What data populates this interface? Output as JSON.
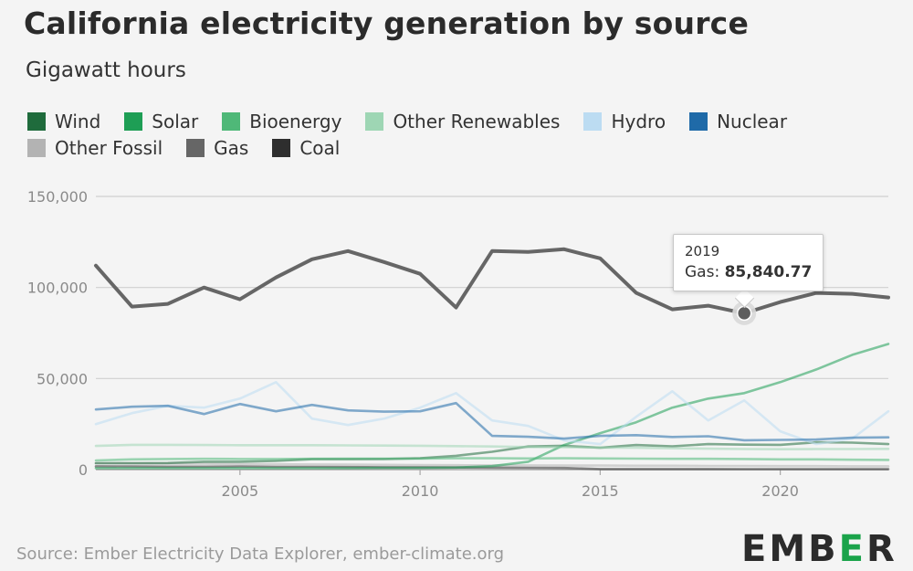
{
  "title": "California electricity generation by source",
  "subtitle": "Gigawatt hours",
  "legend": [
    {
      "name": "Wind",
      "color": "#1f6b3c"
    },
    {
      "name": "Solar",
      "color": "#1e9e55"
    },
    {
      "name": "Bioenergy",
      "color": "#4fb878"
    },
    {
      "name": "Other Renewables",
      "color": "#9ed6b4"
    },
    {
      "name": "Hydro",
      "color": "#bcdcf2"
    },
    {
      "name": "Nuclear",
      "color": "#1f6aa8"
    },
    {
      "name": "Other Fossil",
      "color": "#b3b3b3"
    },
    {
      "name": "Gas",
      "color": "#666666"
    },
    {
      "name": "Coal",
      "color": "#2e2e2e"
    }
  ],
  "tooltip": {
    "year": "2019",
    "series_label": "Gas: ",
    "value": "85,840.77"
  },
  "source": "Source: Ember Electricity Data Explorer, ember-climate.org",
  "logo": {
    "part1": "EMB",
    "part2": "E",
    "part3": "R"
  },
  "chart_data": {
    "type": "line",
    "title": "California electricity generation by source",
    "ylabel": "Gigawatt hours",
    "xlabel": "",
    "xlim": [
      2001,
      2023
    ],
    "ylim": [
      0,
      150000
    ],
    "x_ticks": [
      2005,
      2010,
      2015,
      2020
    ],
    "y_ticks": [
      0,
      50000,
      100000,
      150000
    ],
    "y_tick_labels": [
      "0",
      "50,000",
      "100,000",
      "150,000"
    ],
    "x": [
      2001,
      2002,
      2003,
      2004,
      2005,
      2006,
      2007,
      2008,
      2009,
      2010,
      2011,
      2012,
      2013,
      2014,
      2015,
      2016,
      2017,
      2018,
      2019,
      2020,
      2021,
      2022,
      2023
    ],
    "highlight": {
      "series": "Gas",
      "x": 2019,
      "y": 85840.77
    },
    "series": [
      {
        "name": "Coal",
        "color": "#2e2e2e",
        "values": [
          1800,
          1700,
          1600,
          1600,
          1700,
          1500,
          1500,
          1400,
          1300,
          1300,
          1200,
          1100,
          1000,
          900,
          300,
          300,
          300,
          300,
          250,
          250,
          250,
          250,
          250
        ]
      },
      {
        "name": "Other Fossil",
        "color": "#b3b3b3",
        "values": [
          3500,
          3400,
          3300,
          3200,
          3000,
          2900,
          2800,
          2700,
          2600,
          2500,
          2400,
          2300,
          2300,
          2200,
          2200,
          2100,
          2100,
          2000,
          2000,
          1900,
          1900,
          1800,
          1800
        ]
      },
      {
        "name": "Wind",
        "color": "#1f6b3c",
        "values": [
          3500,
          3500,
          3600,
          4300,
          4300,
          4800,
          5700,
          5700,
          5800,
          6200,
          7600,
          9800,
          12700,
          13100,
          12000,
          13500,
          12800,
          14000,
          13700,
          13600,
          15000,
          14800,
          14000
        ]
      },
      {
        "name": "Solar",
        "color": "#1e9e55",
        "values": [
          800,
          800,
          800,
          800,
          800,
          800,
          800,
          800,
          900,
          900,
          1100,
          1900,
          4300,
          13500,
          20000,
          26000,
          34000,
          39000,
          42000,
          48000,
          55000,
          63000,
          69000
        ]
      },
      {
        "name": "Bioenergy",
        "color": "#4fb878",
        "values": [
          5000,
          5600,
          5800,
          5900,
          5800,
          5800,
          5900,
          6000,
          6000,
          6000,
          6200,
          6200,
          6100,
          6200,
          6100,
          6000,
          5900,
          5900,
          5800,
          5600,
          5600,
          5400,
          5300
        ]
      },
      {
        "name": "Other Renewables",
        "color": "#9ed6b4",
        "values": [
          13000,
          13600,
          13600,
          13500,
          13400,
          13400,
          13400,
          13300,
          13200,
          13100,
          12900,
          12700,
          12400,
          12300,
          12100,
          12000,
          11700,
          11500,
          11300,
          11200,
          11300,
          11300,
          11400
        ]
      },
      {
        "name": "Hydro",
        "color": "#bcdcf2",
        "values": [
          25000,
          31000,
          35000,
          34000,
          39000,
          48000,
          28000,
          24500,
          28000,
          34000,
          42000,
          27000,
          24000,
          16000,
          14000,
          29000,
          43000,
          27000,
          38000,
          21000,
          14000,
          17000,
          32000
        ]
      },
      {
        "name": "Nuclear",
        "color": "#1f6aa8",
        "values": [
          33000,
          34500,
          35000,
          30500,
          36000,
          32000,
          35500,
          32500,
          31800,
          32000,
          36500,
          18500,
          18000,
          17000,
          18500,
          18900,
          17900,
          18300,
          16100,
          16300,
          16500,
          17500,
          17700
        ]
      },
      {
        "name": "Gas",
        "color": "#666666",
        "values": [
          112000,
          89500,
          91000,
          100000,
          93500,
          105500,
          115500,
          120000,
          114000,
          107500,
          89000,
          120000,
          119500,
          121000,
          116000,
          97000,
          88000,
          90000,
          85840.77,
          92000,
          97000,
          96500,
          94500
        ]
      }
    ]
  }
}
